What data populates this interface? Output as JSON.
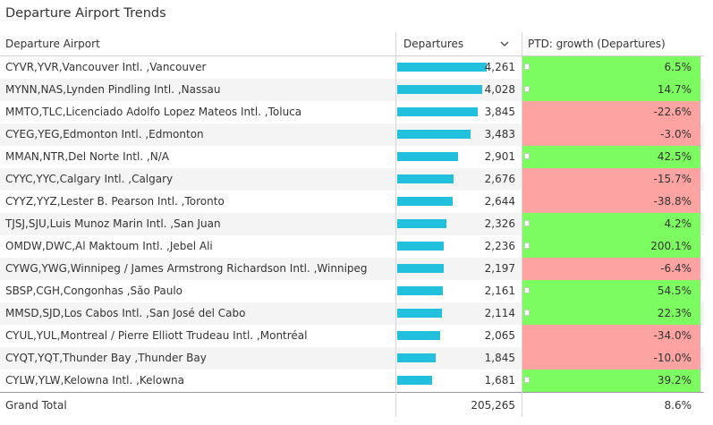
{
  "title": "Departure Airport Trends",
  "columns": {
    "airport": "Departure Airport",
    "departures": "Departures",
    "growth": "PTD: growth (Departures)"
  },
  "icons": {
    "sort": "chevron-down-icon"
  },
  "colors": {
    "bar": "#21c1dd",
    "positive": "#7dfc62",
    "negative": "#fda3a2"
  },
  "bar_max_value": 4261,
  "rows": [
    {
      "airport": "CYVR,YVR,Vancouver Intl. ,Vancouver",
      "departures": "4,261",
      "departures_value": 4261,
      "growth": "6.5%",
      "trend": "positive"
    },
    {
      "airport": "MYNN,NAS,Lynden Pindling Intl. ,Nassau",
      "departures": "4,028",
      "departures_value": 4028,
      "growth": "14.7%",
      "trend": "positive"
    },
    {
      "airport": "MMTO,TLC,Licenciado Adolfo Lopez Mateos Intl. ,Toluca",
      "departures": "3,845",
      "departures_value": 3845,
      "growth": "-22.6%",
      "trend": "negative"
    },
    {
      "airport": "CYEG,YEG,Edmonton Intl. ,Edmonton",
      "departures": "3,483",
      "departures_value": 3483,
      "growth": "-3.0%",
      "trend": "negative"
    },
    {
      "airport": "MMAN,NTR,Del Norte Intl. ,N/A",
      "departures": "2,901",
      "departures_value": 2901,
      "growth": "42.5%",
      "trend": "positive"
    },
    {
      "airport": "CYYC,YYC,Calgary Intl. ,Calgary",
      "departures": "2,676",
      "departures_value": 2676,
      "growth": "-15.7%",
      "trend": "negative"
    },
    {
      "airport": "CYYZ,YYZ,Lester B. Pearson Intl. ,Toronto",
      "departures": "2,644",
      "departures_value": 2644,
      "growth": "-38.8%",
      "trend": "negative"
    },
    {
      "airport": "TJSJ,SJU,Luis Munoz Marin Intl. ,San Juan",
      "departures": "2,326",
      "departures_value": 2326,
      "growth": "4.2%",
      "trend": "positive"
    },
    {
      "airport": "OMDW,DWC,Al Maktoum Intl. ,Jebel Ali",
      "departures": "2,236",
      "departures_value": 2236,
      "growth": "200.1%",
      "trend": "positive"
    },
    {
      "airport": "CYWG,YWG,Winnipeg / James Armstrong Richardson Intl. ,Winnipeg",
      "departures": "2,197",
      "departures_value": 2197,
      "growth": "-6.4%",
      "trend": "negative"
    },
    {
      "airport": "SBSP,CGH,Congonhas ,São Paulo",
      "departures": "2,161",
      "departures_value": 2161,
      "growth": "54.5%",
      "trend": "positive"
    },
    {
      "airport": "MMSD,SJD,Los Cabos Intl. ,San José del Cabo",
      "departures": "2,114",
      "departures_value": 2114,
      "growth": "22.3%",
      "trend": "positive"
    },
    {
      "airport": "CYUL,YUL,Montreal / Pierre Elliott Trudeau Intl. ,Montréal",
      "departures": "2,065",
      "departures_value": 2065,
      "growth": "-34.0%",
      "trend": "negative"
    },
    {
      "airport": "CYQT,YQT,Thunder Bay ,Thunder Bay",
      "departures": "1,845",
      "departures_value": 1845,
      "growth": "-10.0%",
      "trend": "negative"
    },
    {
      "airport": "CYLW,YLW,Kelowna Intl. ,Kelowna",
      "departures": "1,681",
      "departures_value": 1681,
      "growth": "39.2%",
      "trend": "positive"
    }
  ],
  "total": {
    "label": "Grand Total",
    "departures": "205,265",
    "growth": "8.6%"
  }
}
